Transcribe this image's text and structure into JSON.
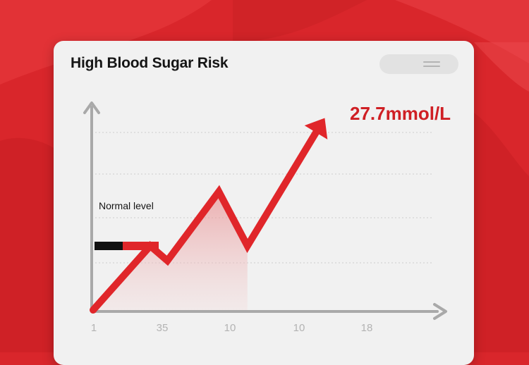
{
  "header": {
    "title": "High Blood Sugar Risk",
    "menu_icon": "hamburger-menu-icon"
  },
  "colors": {
    "background": "#d9262b",
    "card": "#f1f1f1",
    "line": "#e0262a",
    "axis": "#a9a9a9",
    "normal_marker": "#111111"
  },
  "chart_data": {
    "type": "line",
    "title": "High Blood Sugar Risk",
    "xlabel": "",
    "ylabel": "",
    "x_tick_labels": [
      "1",
      "35",
      "10",
      "10",
      "18"
    ],
    "x": [
      0,
      1,
      1.3,
      2.2,
      2.7,
      3.9
    ],
    "values": [
      0,
      1.3,
      1.0,
      2.4,
      1.3,
      3.6
    ],
    "xlim": [
      0,
      5.3
    ],
    "ylim": [
      0,
      3.6
    ],
    "peak_label": "27.7mmol/L",
    "normal_level_label": "Normal level",
    "normal_level_value": 1.3,
    "shaded_until_x": 2.7,
    "grid": "horizontal dashed",
    "arrow_at_end": true
  }
}
